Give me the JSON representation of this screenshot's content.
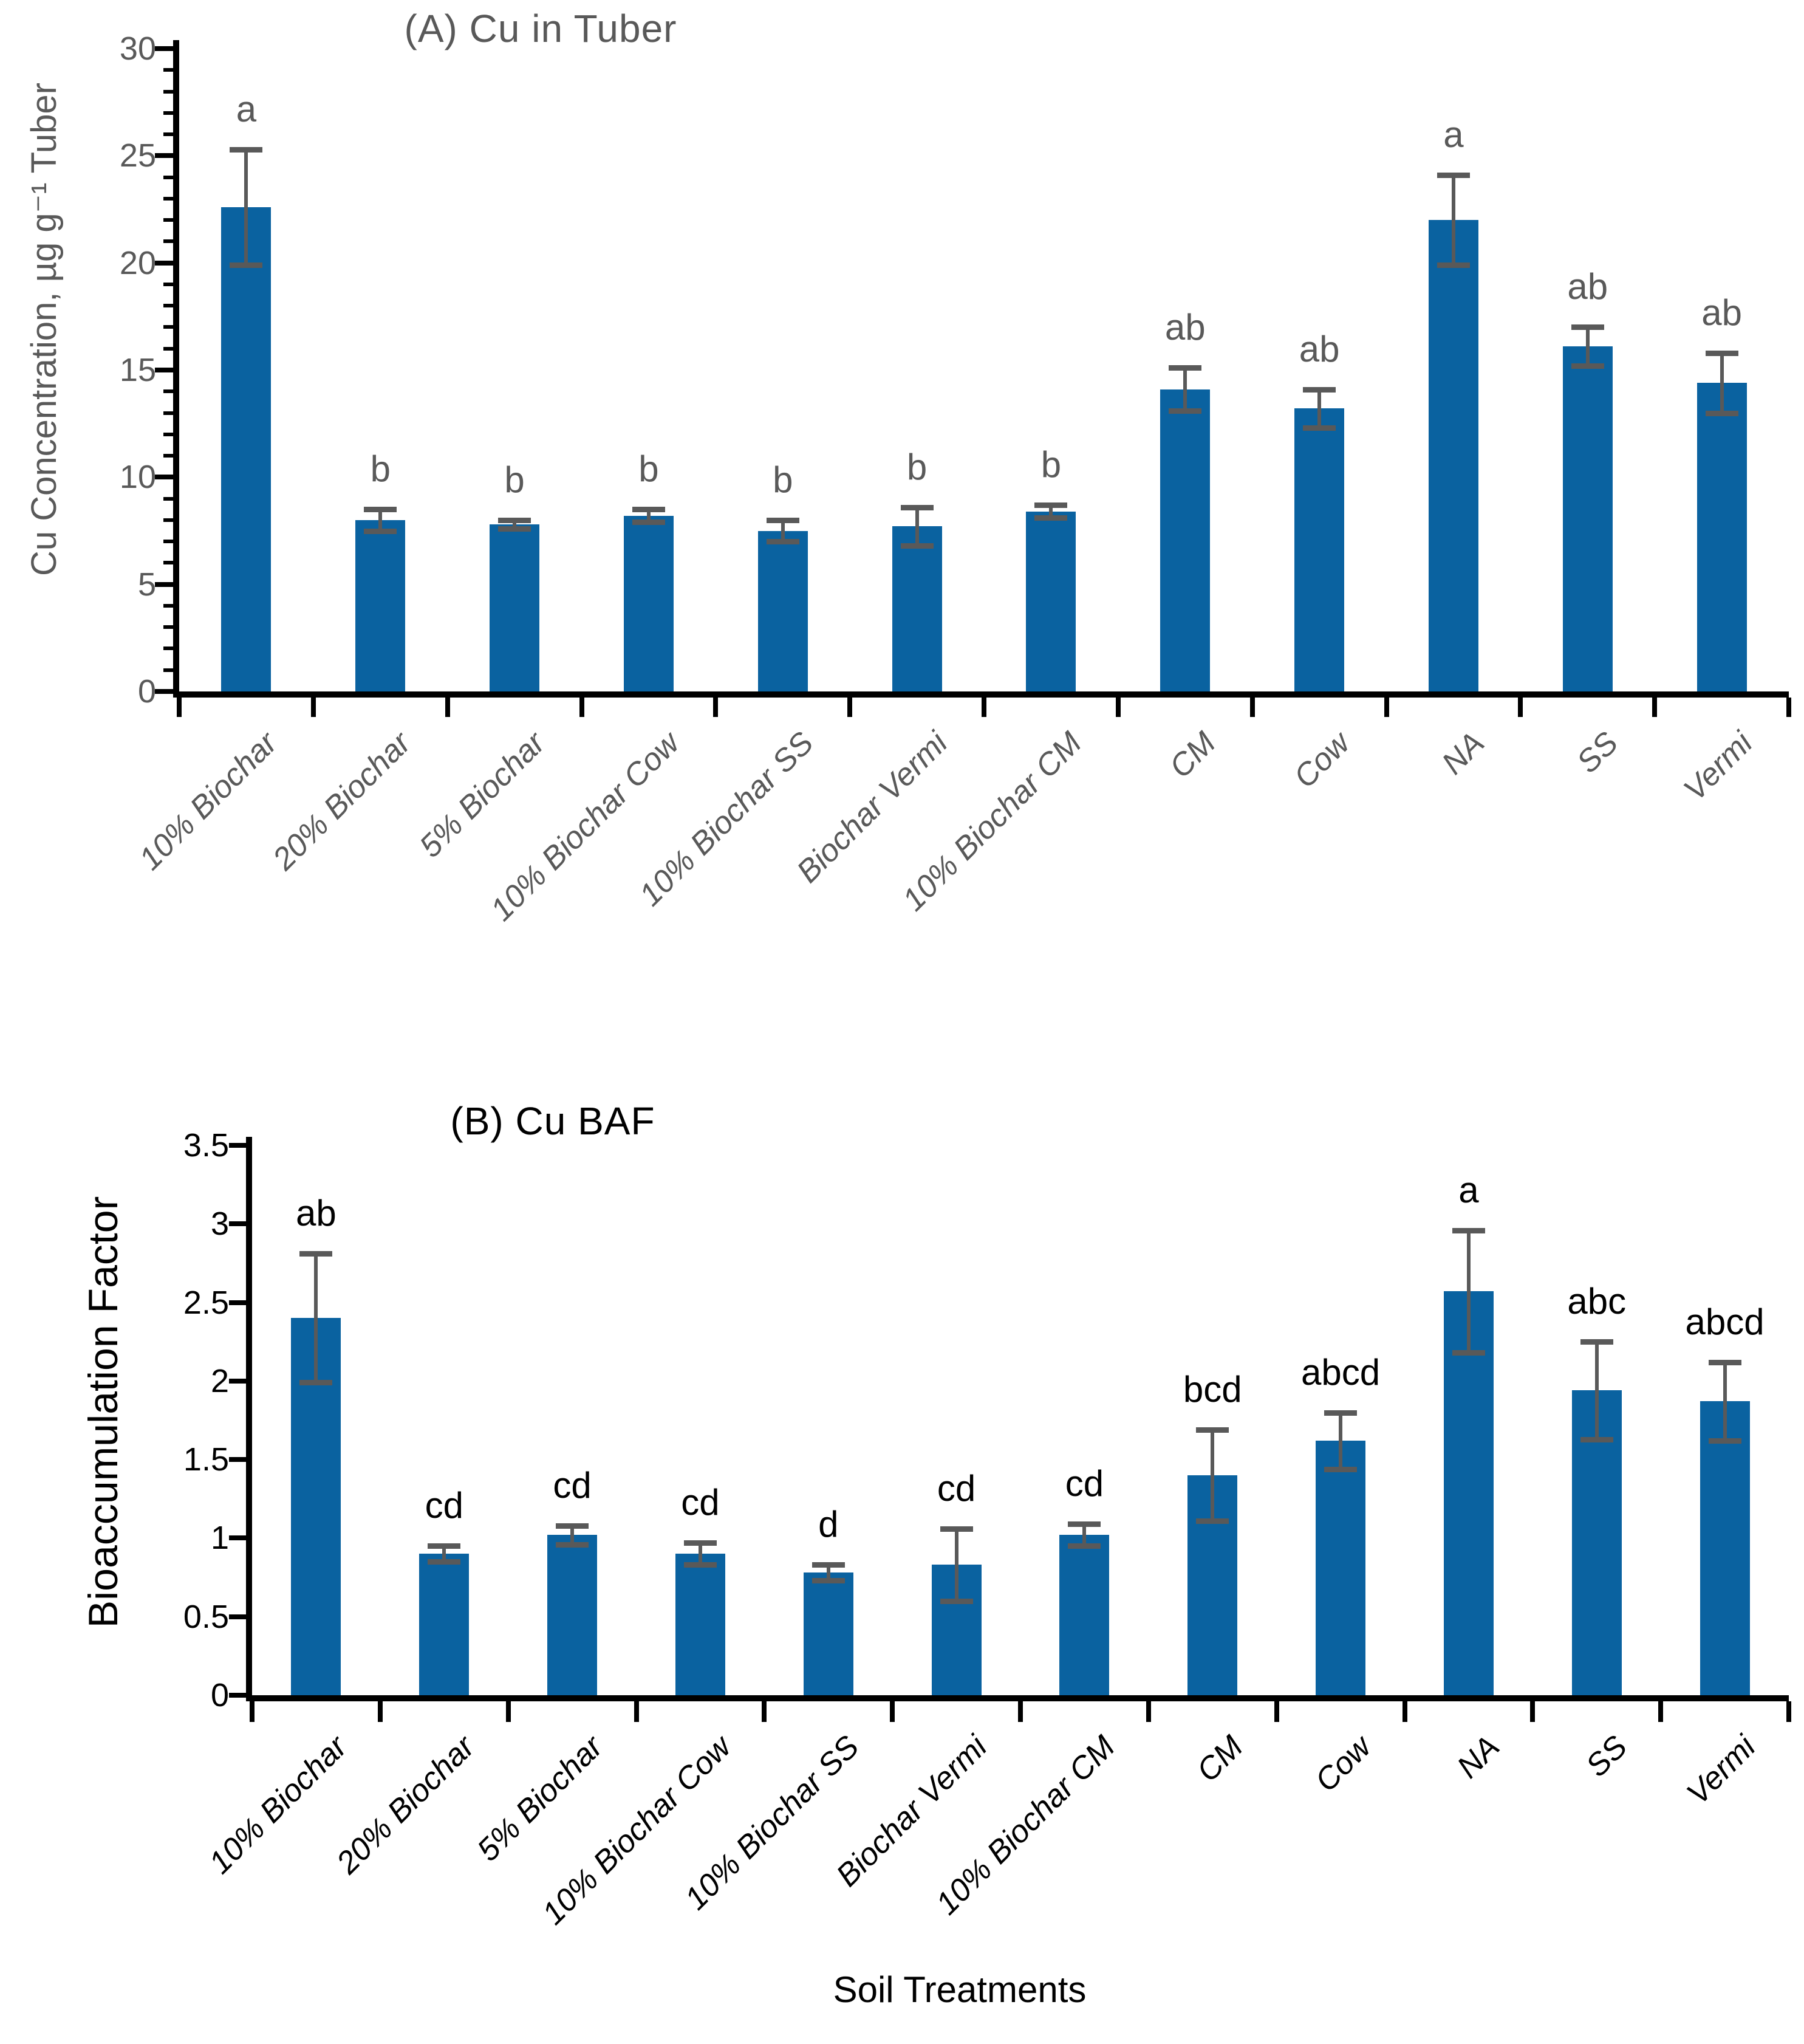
{
  "figure": {
    "x_axis_title": "Soil Treatments"
  },
  "colors": {
    "bar": "#0A62A0",
    "error_bar": "#595959",
    "axis": "#000000",
    "panel_a_text": "#595959",
    "panel_b_text": "#000000"
  },
  "chart_data": [
    {
      "type": "bar",
      "panel": "A",
      "title": "(A) Cu in Tuber",
      "ylabel": "Cu Concentration, µg g⁻¹ Tuber",
      "xlabel": "",
      "categories": [
        "10% Biochar",
        "20% Biochar",
        "5% Biochar",
        "10% Biochar Cow",
        "10% Biochar SS",
        "Biochar Vermi",
        "10% Biochar CM",
        "CM",
        "Cow",
        "NA",
        "SS",
        "Vermi"
      ],
      "values": [
        22.6,
        8.0,
        7.8,
        8.2,
        7.5,
        7.7,
        8.4,
        14.1,
        13.2,
        22.0,
        16.1,
        14.4
      ],
      "errors": [
        2.7,
        0.5,
        0.2,
        0.3,
        0.5,
        0.9,
        0.3,
        1.0,
        0.9,
        2.1,
        0.9,
        1.4
      ],
      "sig_letters": [
        "a",
        "b",
        "b",
        "b",
        "b",
        "b",
        "b",
        "ab",
        "ab",
        "a",
        "ab",
        "ab"
      ],
      "ylim": [
        0,
        30
      ],
      "ytick_step": 5,
      "minor_tick_step": 1,
      "grid": false,
      "legend": "none",
      "text_color": "#595959"
    },
    {
      "type": "bar",
      "panel": "B",
      "title": "(B) Cu BAF",
      "ylabel": "Bioaccumulation Factor",
      "xlabel": "Soil Treatments",
      "categories": [
        "10% Biochar",
        "20% Biochar",
        "5% Biochar",
        "10% Biochar Cow",
        "10% Biochar SS",
        "Biochar Vermi",
        "10% Biochar CM",
        "CM",
        "Cow",
        "NA",
        "SS",
        "Vermi"
      ],
      "values": [
        2.4,
        0.9,
        1.02,
        0.9,
        0.78,
        0.83,
        1.02,
        1.4,
        1.62,
        2.57,
        1.94,
        1.87
      ],
      "errors": [
        0.41,
        0.05,
        0.06,
        0.07,
        0.05,
        0.23,
        0.07,
        0.29,
        0.18,
        0.39,
        0.31,
        0.25
      ],
      "sig_letters": [
        "ab",
        "cd",
        "cd",
        "cd",
        "d",
        "cd",
        "cd",
        "bcd",
        "abcd",
        "a",
        "abc",
        "abcd"
      ],
      "ylim": [
        0,
        3.5
      ],
      "ytick_step": 0.5,
      "minor_tick_step": null,
      "grid": false,
      "legend": "none",
      "text_color": "#000000"
    }
  ]
}
